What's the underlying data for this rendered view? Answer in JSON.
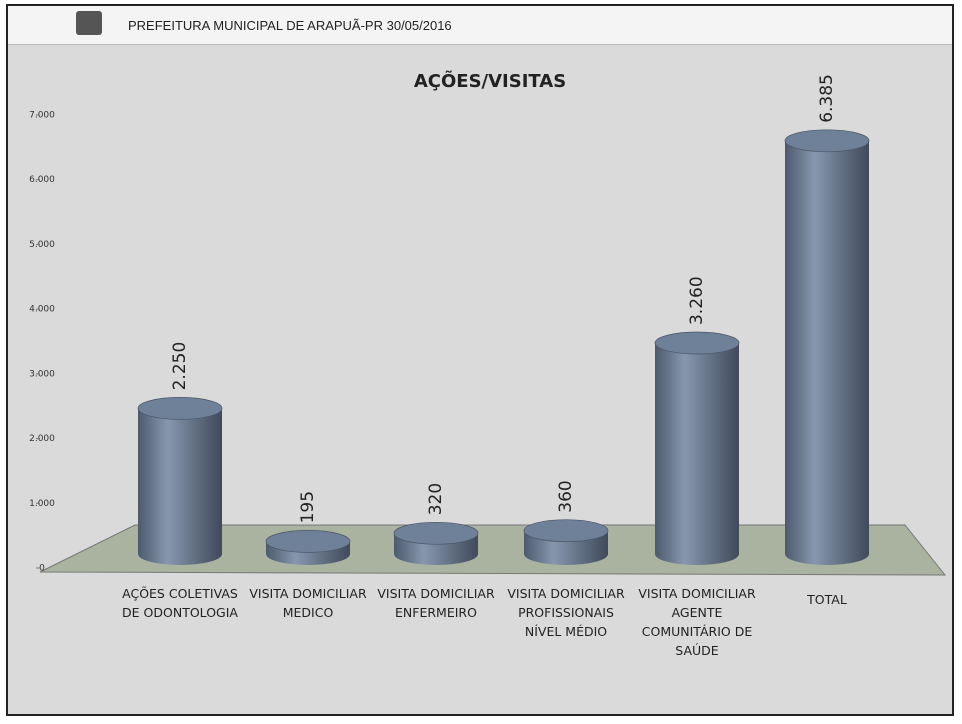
{
  "header": {
    "title": "PREFEITURA MUNICIPAL DE ARAPUÃ-PR 30/05/2016"
  },
  "chart_data": {
    "type": "bar",
    "title": "AÇÕES/VISITAS",
    "categories": [
      "AÇÕES COLETIVAS DE ODONTOLOGIA",
      "VISITA DOMICILIAR MEDICO",
      "VISITA DOMICILIAR ENFERMEIRO",
      "VISITA DOMICILIAR PROFISSIONAIS NÍVEL MÉDIO",
      "VISITA DOMICILIAR AGENTE COMUNITÁRIO DE SAÚDE",
      "TOTAL"
    ],
    "values": [
      2250,
      195,
      320,
      360,
      3260,
      6385
    ],
    "value_labels": [
      "2.250",
      "195",
      "320",
      "360",
      "3.260",
      "6.385"
    ],
    "color": "#6f8099",
    "ylim": [
      0,
      7000
    ],
    "yticks": [
      0,
      {
        "value": 1000,
        "label": "1.000"
      },
      {
        "value": 2000,
        "label": "2.000"
      },
      {
        "value": 3000,
        "label": "3.000"
      },
      {
        "value": 4000,
        "label": "4.000"
      },
      {
        "value": 5000,
        "label": "5.000"
      },
      {
        "value": 6000,
        "label": "6.000"
      },
      {
        "value": 7000,
        "label": "7.000"
      }
    ]
  }
}
